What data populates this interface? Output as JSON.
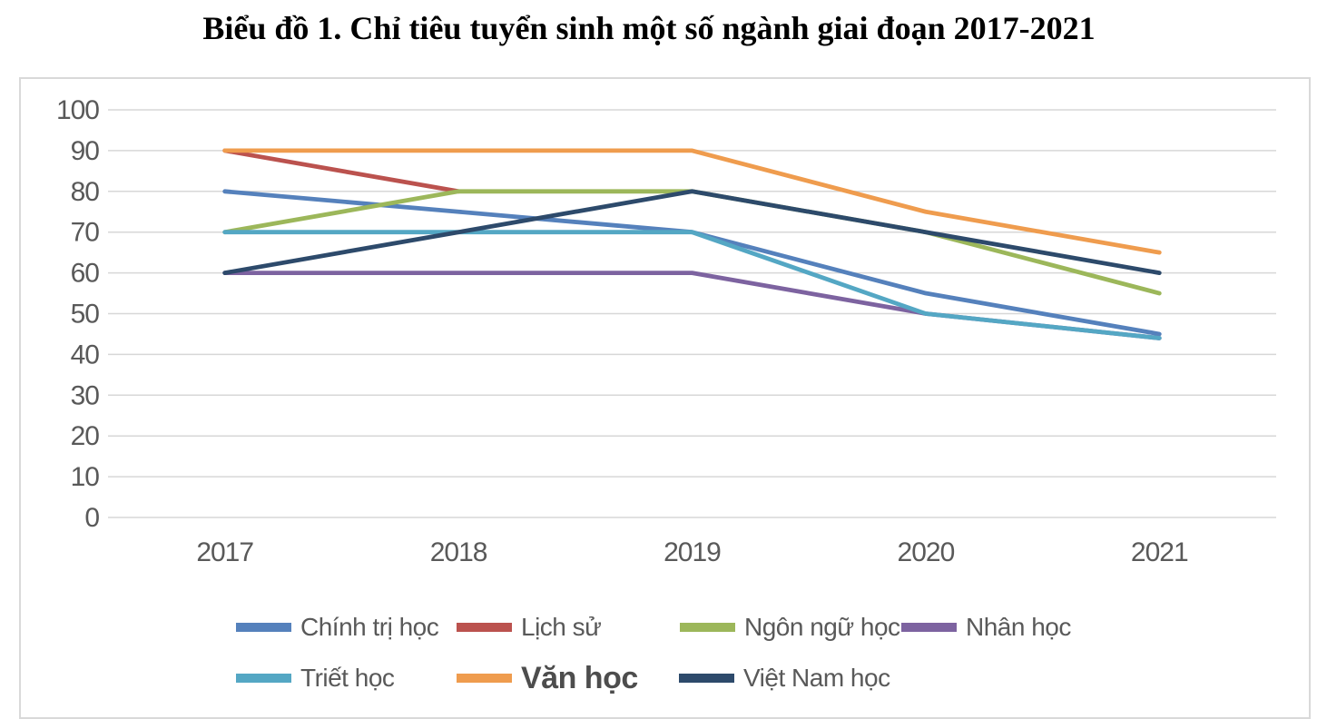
{
  "title": "Biểu đồ 1. Chỉ tiêu tuyển sinh một số ngành giai đoạn 2017-2021",
  "colors": {
    "grid": "#D7D7D7",
    "border": "#D9D9D9",
    "axis_text": "#595959",
    "title_text": "#000000"
  },
  "chart_data": {
    "type": "line",
    "title": "Biểu đồ 1. Chỉ tiêu tuyển sinh một số ngành giai đoạn 2017-2021",
    "categories": [
      "2017",
      "2018",
      "2019",
      "2020",
      "2021"
    ],
    "series": [
      {
        "id": "chinh-tri-hoc",
        "name": "Chính trị học",
        "color": "#5581BC",
        "values": [
          80,
          75,
          70,
          55,
          45
        ]
      },
      {
        "id": "lich-su",
        "name": "Lịch sử",
        "color": "#BB524E",
        "values": [
          90,
          80,
          null,
          null,
          null
        ]
      },
      {
        "id": "ngon-ngu-hoc",
        "name": "Ngôn ngữ học",
        "color": "#9CB75A",
        "values": [
          70,
          80,
          80,
          70,
          55
        ]
      },
      {
        "id": "nhan-hoc",
        "name": "Nhân học",
        "color": "#7D63A0",
        "values": [
          60,
          60,
          60,
          50,
          44
        ]
      },
      {
        "id": "triet-hoc",
        "name": "Triết học",
        "color": "#54A7C4",
        "values": [
          70,
          70,
          70,
          50,
          44
        ]
      },
      {
        "id": "van-hoc",
        "name": "Văn học",
        "color": "#EF9C4E",
        "values": [
          90,
          90,
          90,
          75,
          65
        ],
        "bold_legend": true
      },
      {
        "id": "viet-nam-hoc",
        "name": "Việt Nam học",
        "color": "#2D4A6B",
        "values": [
          60,
          70,
          80,
          70,
          60
        ]
      }
    ],
    "xlabel": "",
    "ylabel": "",
    "ylim": [
      0,
      100
    ],
    "yticks": [
      "0",
      "10",
      "20",
      "30",
      "40",
      "50",
      "60",
      "70",
      "80",
      "90",
      "100"
    ],
    "grid": true,
    "legend_position": "bottom",
    "legend_rows": [
      [
        "chinh-tri-hoc",
        "lich-su",
        "ngon-ngu-hoc",
        "nhan-hoc"
      ],
      [
        "triet-hoc",
        "van-hoc",
        "viet-nam-hoc"
      ]
    ]
  }
}
